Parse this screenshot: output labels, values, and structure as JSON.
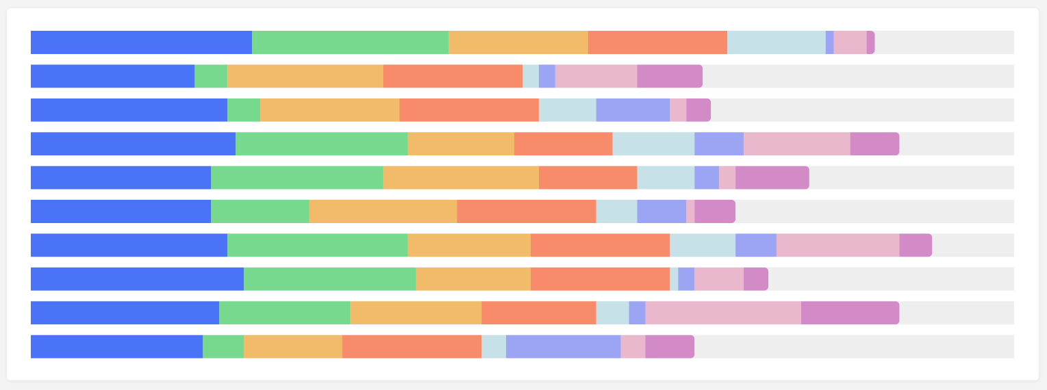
{
  "chart_data": {
    "type": "stacked-bar",
    "orientation": "horizontal",
    "categories": [
      null,
      null,
      null,
      null,
      null,
      null,
      null,
      null,
      null,
      null
    ],
    "xlim": [
      0,
      120
    ],
    "series": [
      {
        "color": "#4a73f8",
        "values": [
          27,
          20,
          24,
          25,
          22,
          22,
          24,
          26,
          23,
          21
        ]
      },
      {
        "color": "#76d98e",
        "values": [
          24,
          4,
          4,
          21,
          21,
          12,
          22,
          21,
          16,
          5
        ]
      },
      {
        "color": "#f2bb69",
        "values": [
          17,
          19,
          17,
          13,
          19,
          18,
          15,
          14,
          16,
          12
        ]
      },
      {
        "color": "#f78b6a",
        "values": [
          17,
          17,
          17,
          12,
          12,
          17,
          17,
          17,
          14,
          17
        ]
      },
      {
        "color": "#c6e2e8",
        "values": [
          12,
          2,
          7,
          10,
          7,
          5,
          8,
          1,
          4,
          3
        ]
      },
      {
        "color": "#9ba5f4",
        "values": [
          1,
          2,
          9,
          6,
          3,
          6,
          5,
          2,
          2,
          14
        ]
      },
      {
        "color": "#e9b8cc",
        "values": [
          4,
          10,
          2,
          13,
          2,
          1,
          15,
          6,
          19,
          3
        ]
      },
      {
        "color": "#d38bc8",
        "values": [
          1,
          8,
          3,
          6,
          9,
          5,
          4,
          3,
          12,
          6
        ]
      }
    ],
    "track_color": "#eeeeee"
  }
}
